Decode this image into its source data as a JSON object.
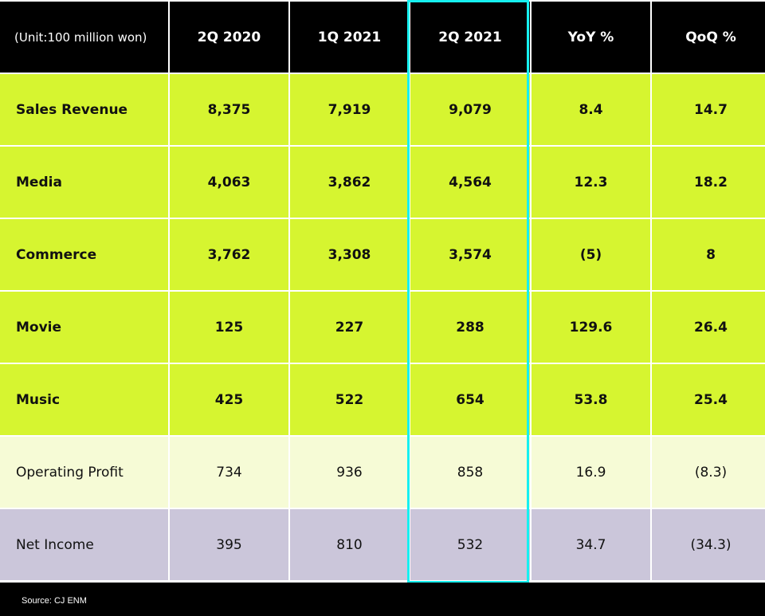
{
  "colors": {
    "header": "#000000",
    "segment_rows": "#d6f530",
    "operating_profit_row": "#f6fbd6",
    "net_income_row": "#cbc6da",
    "highlight": "#16f0f0"
  },
  "chart_data": {
    "type": "table",
    "unit_label": "(Unit:100 million won)",
    "columns": [
      "2Q 2020",
      "1Q 2021",
      "2Q 2021",
      "YoY %",
      "QoQ %"
    ],
    "highlighted_column": "2Q 2021",
    "rows": [
      {
        "label": "Sales Revenue",
        "values": [
          "8,375",
          "7,919",
          "9,079",
          "8.4",
          "14.7"
        ]
      },
      {
        "label": "Media",
        "values": [
          "4,063",
          "3,862",
          "4,564",
          "12.3",
          "18.2"
        ]
      },
      {
        "label": "Commerce",
        "values": [
          "3,762",
          "3,308",
          "3,574",
          "(5)",
          "8"
        ]
      },
      {
        "label": "Movie",
        "values": [
          "125",
          "227",
          "288",
          "129.6",
          "26.4"
        ]
      },
      {
        "label": "Music",
        "values": [
          "425",
          "522",
          "654",
          "53.8",
          "25.4"
        ]
      },
      {
        "label": "Operating Profit",
        "values": [
          "734",
          "936",
          "858",
          "16.9",
          "(8.3)"
        ]
      },
      {
        "label": "Net Income",
        "values": [
          "395",
          "810",
          "532",
          "34.7",
          "(34.3)"
        ]
      }
    ],
    "source": "Source: CJ ENM"
  }
}
